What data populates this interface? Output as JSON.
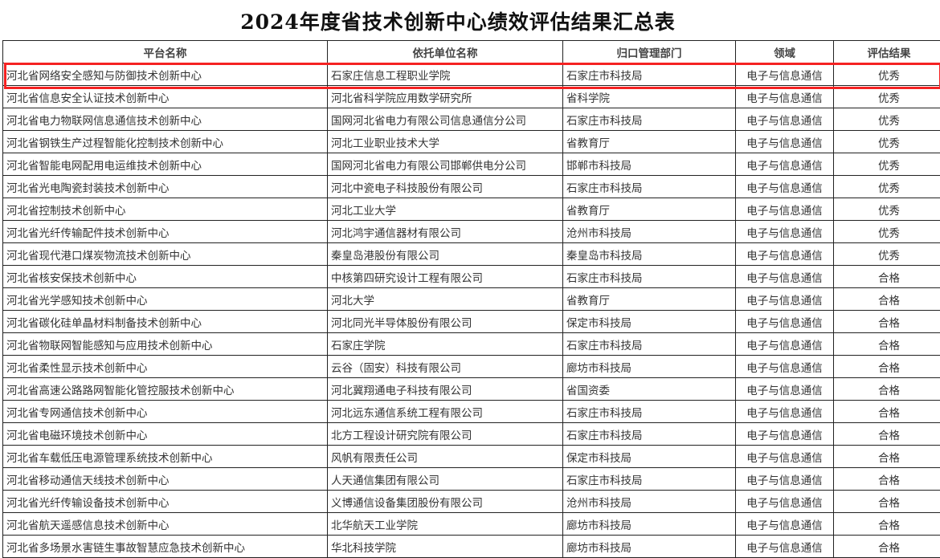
{
  "title": "2024年度省技术创新中心绩效评估结果汇总表",
  "headers": [
    "平台名称",
    "依托单位名称",
    "归口管理部门",
    "领域",
    "评估结果"
  ],
  "highlight_color": "#f52222",
  "rows": [
    [
      "河北省网络安全感知与防御技术创新中心",
      "石家庄信息工程职业学院",
      "石家庄市科技局",
      "电子与信息通信",
      "优秀"
    ],
    [
      "河北省信息安全认证技术创新中心",
      "河北省科学院应用数学研究所",
      "省科学院",
      "电子与信息通信",
      "优秀"
    ],
    [
      "河北省电力物联网信息通信技术创新中心",
      "国网河北省电力有限公司信息通信分公司",
      "石家庄市科技局",
      "电子与信息通信",
      "优秀"
    ],
    [
      "河北省钢铁生产过程智能化控制技术创新中心",
      "河北工业职业技术大学",
      "省教育厅",
      "电子与信息通信",
      "优秀"
    ],
    [
      "河北省智能电网配用电运维技术创新中心",
      "国网河北省电力有限公司邯郸供电分公司",
      "邯郸市科技局",
      "电子与信息通信",
      "优秀"
    ],
    [
      "河北省光电陶瓷封装技术创新中心",
      "河北中瓷电子科技股份有限公司",
      "石家庄市科技局",
      "电子与信息通信",
      "优秀"
    ],
    [
      "河北省控制技术创新中心",
      "河北工业大学",
      "省教育厅",
      "电子与信息通信",
      "优秀"
    ],
    [
      "河北省光纤传输配件技术创新中心",
      "河北鸿宇通信器材有限公司",
      "沧州市科技局",
      "电子与信息通信",
      "优秀"
    ],
    [
      "河北省现代港口煤炭物流技术创新中心",
      "秦皇岛港股份有限公司",
      "秦皇岛市科技局",
      "电子与信息通信",
      "优秀"
    ],
    [
      "河北省核安保技术创新中心",
      "中核第四研究设计工程有限公司",
      "石家庄市科技局",
      "电子与信息通信",
      "合格"
    ],
    [
      "河北省光学感知技术创新中心",
      "河北大学",
      "省教育厅",
      "电子与信息通信",
      "合格"
    ],
    [
      "河北省碳化硅单晶材料制备技术创新中心",
      "河北同光半导体股份有限公司",
      "保定市科技局",
      "电子与信息通信",
      "合格"
    ],
    [
      "河北省物联网智能感知与应用技术创新中心",
      "石家庄学院",
      "石家庄市科技局",
      "电子与信息通信",
      "合格"
    ],
    [
      "河北省柔性显示技术创新中心",
      "云谷（固安）科技有限公司",
      "廊坊市科技局",
      "电子与信息通信",
      "合格"
    ],
    [
      "河北省高速公路路网智能化管控服技术创新中心",
      "河北冀翔通电子科技有限公司",
      "省国资委",
      "电子与信息通信",
      "合格"
    ],
    [
      "河北省专网通信技术创新中心",
      "河北远东通信系统工程有限公司",
      "石家庄市科技局",
      "电子与信息通信",
      "合格"
    ],
    [
      "河北省电磁环境技术创新中心",
      "北方工程设计研究院有限公司",
      "石家庄市科技局",
      "电子与信息通信",
      "合格"
    ],
    [
      "河北省车载低压电源管理系统技术创新中心",
      "风帆有限责任公司",
      "保定市科技局",
      "电子与信息通信",
      "合格"
    ],
    [
      "河北省移动通信天线技术创新中心",
      "人天通信集团有限公司",
      "石家庄市科技局",
      "电子与信息通信",
      "合格"
    ],
    [
      "河北省光纤传输设备技术创新中心",
      "义博通信设备集团股份有限公司",
      "沧州市科技局",
      "电子与信息通信",
      "合格"
    ],
    [
      "河北省航天遥感信息技术创新中心",
      "北华航天工业学院",
      "廊坊市科技局",
      "电子与信息通信",
      "合格"
    ],
    [
      "河北省多场景水害链生事故智慧应急技术创新中心",
      "华北科技学院",
      "廊坊市科技局",
      "电子与信息通信",
      "合格"
    ]
  ]
}
